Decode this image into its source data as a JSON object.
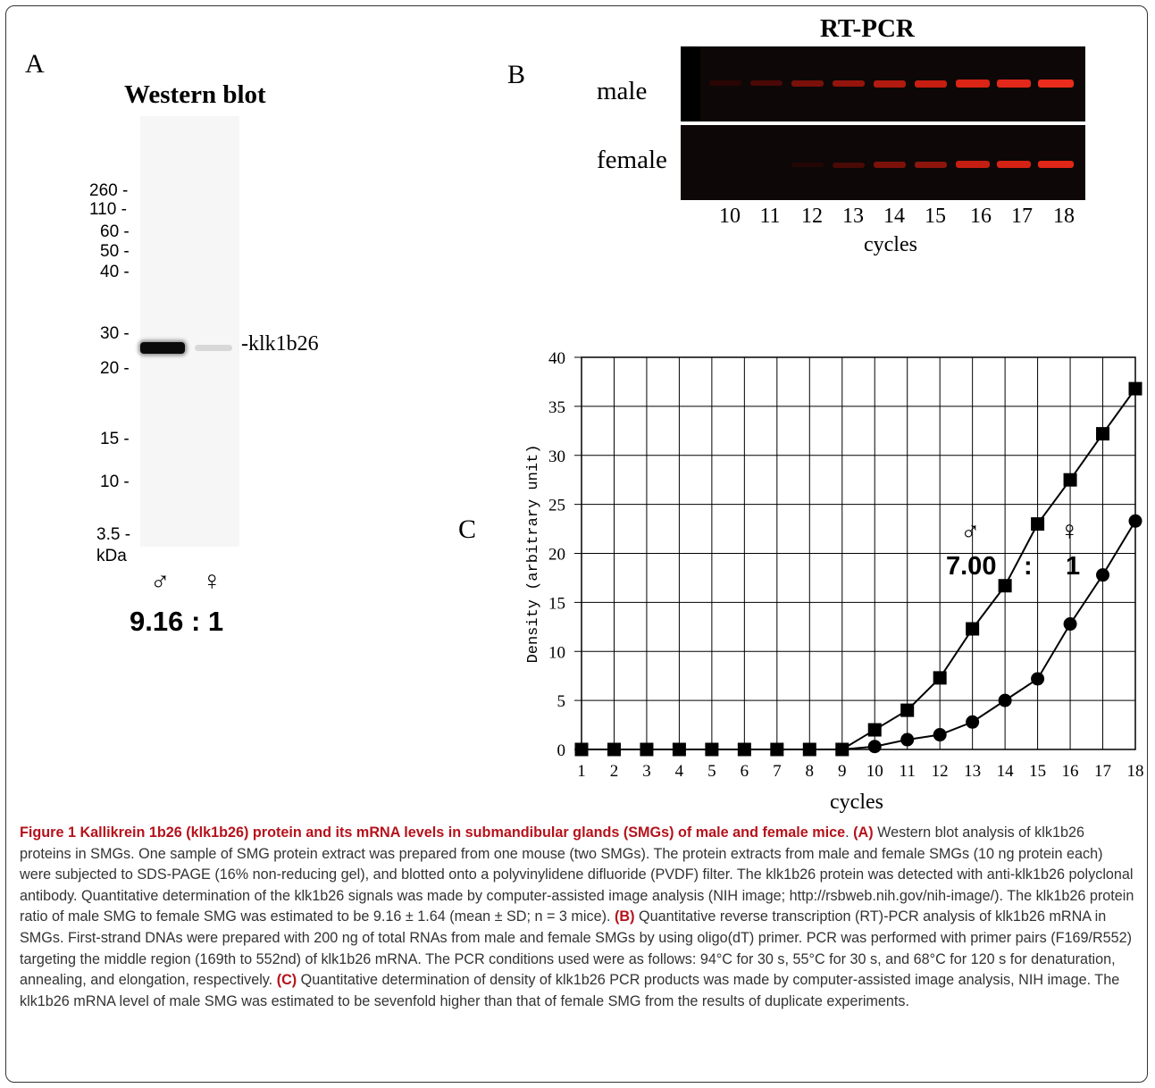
{
  "panel_a": {
    "label": "A",
    "title": "Western blot",
    "mw_markers": [
      "260 -",
      "110 -",
      "60 -",
      "50 -",
      "40 -",
      "30 -",
      "20 -",
      "15 -",
      "10 -",
      "3.5 -"
    ],
    "unit": "kDa",
    "band_label": "-klk1b26",
    "male_symbol": "♂",
    "female_symbol": "♀",
    "ratio": "9.16 : 1"
  },
  "panel_b": {
    "label": "B",
    "title": "RT-PCR",
    "row_male": "male",
    "row_female": "female",
    "lanes": [
      "10",
      "11",
      "12",
      "13",
      "14",
      "15",
      "16",
      "17",
      "18"
    ],
    "xlabel": "cycles"
  },
  "panel_c": {
    "label": "C",
    "male_symbol": "♂",
    "female_symbol": "♀",
    "ratio_male": "7.00",
    "ratio_sep": ":",
    "ratio_female": "1"
  },
  "chart_data": {
    "type": "line",
    "xlabel": "cycles",
    "ylabel": "Density (arbitrary unit)",
    "xlim": [
      1,
      18
    ],
    "ylim": [
      0,
      40
    ],
    "grid": true,
    "x": [
      1,
      2,
      3,
      4,
      5,
      6,
      7,
      8,
      9,
      10,
      11,
      12,
      13,
      14,
      15,
      16,
      17,
      18
    ],
    "yticks": [
      0,
      5,
      10,
      15,
      20,
      25,
      30,
      35,
      40
    ],
    "series": [
      {
        "marker": "square",
        "values": [
          0,
          0,
          0,
          0,
          0,
          0,
          0,
          0,
          0,
          2.0,
          4.0,
          7.3,
          12.3,
          16.7,
          23.0,
          27.5,
          32.2,
          36.8
        ]
      },
      {
        "marker": "circle",
        "values": [
          0,
          0,
          0,
          0,
          0,
          0,
          0,
          0,
          0,
          0.3,
          1.0,
          1.5,
          2.8,
          5.0,
          7.2,
          12.8,
          17.8,
          23.3
        ]
      }
    ]
  },
  "caption": {
    "lead": "Figure 1 Kallikrein 1b26 (klk1b26) protein and its mRNA levels in submandibular glands (SMGs) of male and female mice",
    "ref_a": "(A)",
    "text_a": " Western blot analysis of klk1b26 proteins in SMGs. One sample of SMG protein extract was prepared from one mouse (two SMGs). The protein extracts from male and female SMGs (10 ng protein each) were subjected to SDS-PAGE (16% non-reducing gel), and blotted onto a polyvinylidene difluoride (PVDF) filter. The klk1b26 protein was detected with anti-klk1b26 polyclonal antibody. Quantitative determination of the klk1b26 signals was made by computer-assisted image analysis (NIH image; http://rsbweb.nih.gov/nih-image/). The klk1b26 protein ratio of male SMG to female SMG was estimated to be 9.16 ± 1.64 (mean ± SD; n = 3 mice). ",
    "ref_b": "(B)",
    "text_b": " Quantitative reverse transcription (RT)-PCR analysis of klk1b26 mRNA in SMGs. First-strand DNAs were prepared with 200 ng of total RNAs from male and female SMGs by using oligo(dT) primer. PCR was performed with primer pairs (F169/R552) targeting the middle region (169th to 552nd) of klk1b26 mRNA. The PCR conditions used were as follows: 94°C for 30 s, 55°C for 30 s, and 68°C for 120 s for denaturation, annealing, and elongation, respectively. ",
    "ref_c": "(C)",
    "text_c": " Quantitative determination of density of klk1b26 PCR products was made by computer-assisted image analysis, NIH image. The klk1b26 mRNA level of male SMG was estimated to be sevenfold higher than that of female SMG from the results of duplicate experiments."
  }
}
